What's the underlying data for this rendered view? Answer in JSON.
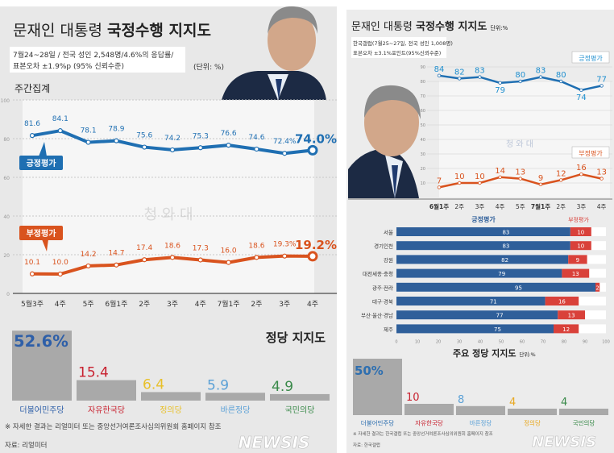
{
  "left": {
    "title_light": "문재인 대통령",
    "title_bold": "국정수행 지지도",
    "survey_line1": "7월24~28일 / 전국 성인 2,548명/4.6%의 응답률/",
    "survey_line2": "표본오차 ±1.9%p (95% 신뢰수준)",
    "unit": "(단위: %)",
    "section": "주간집계",
    "party_title": "정당 지지도",
    "footnote": "※ 자세한 결과는 리얼미터 또는 중앙선거여론조사심의위원회 홈페이지 참조",
    "source": "자료: 리얼미터",
    "watermark": "청 와 대",
    "logo": "NEWSIS"
  },
  "right": {
    "title_light": "문재인 대통령",
    "title_bold": "국정수행 지지도",
    "unit": "단위:%",
    "survey_line1": "한국갤럽(7월25~27일, 전국 성인 1,008명)",
    "survey_line2": "표본오차 ±3.1%포인트(95%신뢰수준)",
    "party_title": "주요 정당 지지도",
    "party_unit": "단위:%",
    "footnote": "※ 자세한 결과는 한국갤럽 또는 중앙선거여론조사심의위원회 홈페이지 참조",
    "source": "자료: 한국갤럽",
    "watermark": "청 와 대",
    "logo": "NEWSIS"
  },
  "colors": {
    "positive": "#1f6fb2",
    "negative": "#d9531e",
    "bar_pos": "#2f5f9a",
    "bar_neg": "#d9413a",
    "party_bar": "#a9a9a9"
  },
  "chart_data": [
    {
      "type": "line",
      "yticks": [
        "0",
        "20",
        "40",
        "60",
        "80",
        "100"
      ],
      "ylim": [
        0,
        100
      ],
      "categories": [
        "5월3주",
        "4주",
        "5주",
        "6월1주",
        "2주",
        "3주",
        "4주",
        "7월1주",
        "2주",
        "3주",
        "4주"
      ],
      "series": [
        {
          "name": "긍정평가",
          "values": [
            81.6,
            84.1,
            78.1,
            78.9,
            75.6,
            74.2,
            75.3,
            76.6,
            74.6,
            72.4,
            74.0
          ],
          "labels": [
            "81.6",
            "84.1",
            "78.1",
            "78.9",
            "75.6",
            "74.2",
            "75.3",
            "76.6",
            "74.6",
            "72.4%",
            "74.0%"
          ]
        },
        {
          "name": "부정평가",
          "values": [
            10.1,
            10.0,
            14.2,
            14.7,
            17.4,
            18.6,
            17.3,
            16.0,
            18.6,
            19.3,
            19.2
          ],
          "labels": [
            "10.1",
            "10.0",
            "14.2",
            "14.7",
            "17.4",
            "18.6",
            "17.3",
            "16.0",
            "18.6",
            "19.3%",
            "19.2%"
          ]
        }
      ],
      "grid": true
    },
    {
      "type": "line",
      "yticks": [
        "10",
        "20",
        "30",
        "40",
        "50",
        "60",
        "70",
        "80",
        "90"
      ],
      "ylim": [
        0,
        90
      ],
      "categories": [
        "6월1주",
        "2주",
        "3주",
        "4주",
        "5주",
        "7월1주",
        "2주",
        "3주",
        "4주"
      ],
      "series": [
        {
          "name": "긍정평가",
          "values": [
            84,
            82,
            83,
            79,
            80,
            83,
            80,
            74,
            77
          ]
        },
        {
          "name": "부정평가",
          "values": [
            7,
            10,
            10,
            14,
            13,
            9,
            12,
            16,
            13
          ]
        }
      ],
      "grid": true
    },
    {
      "type": "bar",
      "orientation": "horizontal-stacked",
      "categories": [
        "서울",
        "경기인천",
        "강원",
        "대전세종·충청",
        "광주·전라",
        "대구·경북",
        "부산·울산·경남",
        "제주"
      ],
      "series": [
        {
          "name": "긍정평가",
          "values": [
            83,
            83,
            82,
            79,
            95,
            71,
            77,
            75
          ]
        },
        {
          "name": "부정평가",
          "values": [
            10,
            10,
            9,
            13,
            2,
            16,
            13,
            12
          ]
        }
      ],
      "xticks": [
        "0",
        "10",
        "20",
        "30",
        "40",
        "50",
        "60",
        "70",
        "80",
        "90",
        "100"
      ],
      "xlim": [
        0,
        100
      ]
    },
    {
      "type": "bar",
      "title": "정당 지지도",
      "categories": [
        "더불어민주당",
        "자유한국당",
        "정의당",
        "바른정당",
        "국민의당"
      ],
      "values": [
        52.6,
        15.4,
        6.4,
        5.9,
        4.9
      ],
      "labels": [
        "52.6%",
        "15.4",
        "6.4",
        "5.9",
        "4.9"
      ],
      "colors": [
        "#2e5fa8",
        "#c8202e",
        "#e8c02a",
        "#5aa0d6",
        "#3a8a4a"
      ]
    },
    {
      "type": "bar",
      "title": "주요 정당 지지도",
      "categories": [
        "더불어민주당",
        "자유한국당",
        "바른정당",
        "정의당",
        "국민의당"
      ],
      "values": [
        50,
        10,
        8,
        4,
        4
      ],
      "labels": [
        "50%",
        "10",
        "8",
        "4",
        "4"
      ],
      "colors": [
        "#2e6fb0",
        "#c8202e",
        "#5aa0d6",
        "#e8a820",
        "#3a8a4a"
      ]
    }
  ]
}
